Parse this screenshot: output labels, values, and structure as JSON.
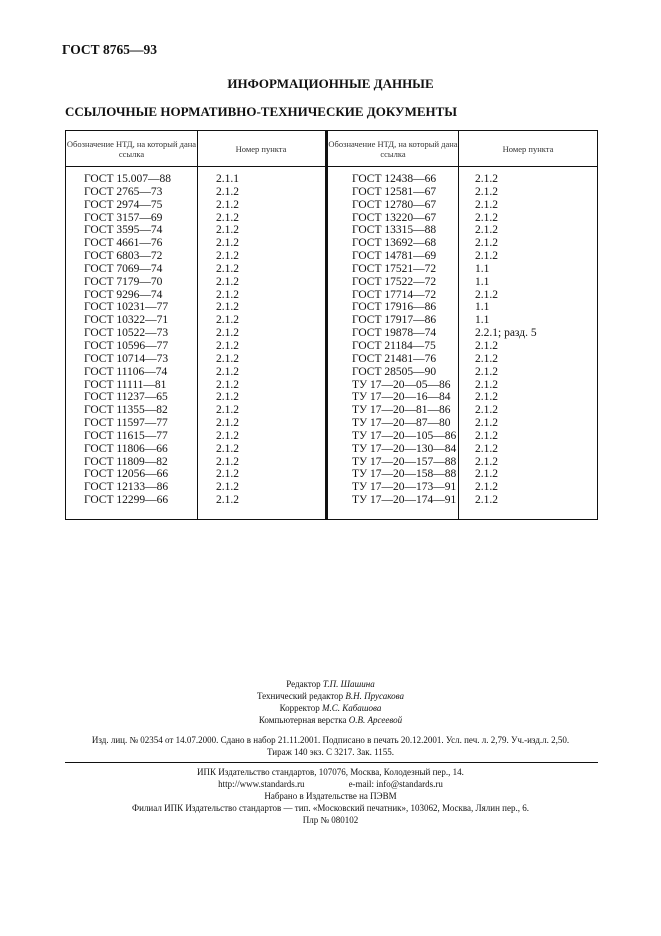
{
  "header": {
    "doc_code": "ГОСТ 8765—93"
  },
  "section_title": "ИНФОРМАЦИОННЫЕ ДАННЫЕ",
  "subsection_title": "ССЫЛОЧНЫЕ НОРМАТИВНО-ТЕХНИЧЕСКИЕ ДОКУМЕНТЫ",
  "table": {
    "headers": [
      "Обозначение НТД, на который дана ссылка",
      "Номер пункта",
      "Обозначение НТД, на который дана ссылка",
      "Номер пункта"
    ],
    "left_rows": [
      [
        "ГОСТ 15.007—88",
        "2.1.1"
      ],
      [
        "ГОСТ 2765—73",
        "2.1.2"
      ],
      [
        "ГОСТ 2974—75",
        "2.1.2"
      ],
      [
        "ГОСТ 3157—69",
        "2.1.2"
      ],
      [
        "ГОСТ 3595—74",
        "2.1.2"
      ],
      [
        "ГОСТ 4661—76",
        "2.1.2"
      ],
      [
        "ГОСТ 6803—72",
        "2.1.2"
      ],
      [
        "ГОСТ 7069—74",
        "2.1.2"
      ],
      [
        "ГОСТ 7179—70",
        "2.1.2"
      ],
      [
        "ГОСТ 9296—74",
        "2.1.2"
      ],
      [
        "ГОСТ 10231—77",
        "2.1.2"
      ],
      [
        "ГОСТ 10322—71",
        "2.1.2"
      ],
      [
        "ГОСТ 10522—73",
        "2.1.2"
      ],
      [
        "ГОСТ 10596—77",
        "2.1.2"
      ],
      [
        "ГОСТ 10714—73",
        "2.1.2"
      ],
      [
        "ГОСТ 11106—74",
        "2.1.2"
      ],
      [
        "ГОСТ 11111—81",
        "2.1.2"
      ],
      [
        "ГОСТ 11237—65",
        "2.1.2"
      ],
      [
        "ГОСТ 11355—82",
        "2.1.2"
      ],
      [
        "ГОСТ 11597—77",
        "2.1.2"
      ],
      [
        "ГОСТ 11615—77",
        "2.1.2"
      ],
      [
        "ГОСТ 11806—66",
        "2.1.2"
      ],
      [
        "ГОСТ 11809—82",
        "2.1.2"
      ],
      [
        "ГОСТ 12056—66",
        "2.1.2"
      ],
      [
        "ГОСТ 12133—86",
        "2.1.2"
      ],
      [
        "ГОСТ 12299—66",
        "2.1.2"
      ]
    ],
    "right_rows": [
      [
        "ГОСТ 12438—66",
        "2.1.2"
      ],
      [
        "ГОСТ 12581—67",
        "2.1.2"
      ],
      [
        "ГОСТ 12780—67",
        "2.1.2"
      ],
      [
        "ГОСТ 13220—67",
        "2.1.2"
      ],
      [
        "ГОСТ 13315—88",
        "2.1.2"
      ],
      [
        "ГОСТ 13692—68",
        "2.1.2"
      ],
      [
        "ГОСТ 14781—69",
        "2.1.2"
      ],
      [
        "ГОСТ 17521—72",
        "1.1"
      ],
      [
        "ГОСТ 17522—72",
        "1.1"
      ],
      [
        "ГОСТ 17714—72",
        "2.1.2"
      ],
      [
        "ГОСТ 17916—86",
        "1.1"
      ],
      [
        "ГОСТ 17917—86",
        "1.1"
      ],
      [
        "ГОСТ 19878—74",
        "2.2.1; разд. 5"
      ],
      [
        "ГОСТ 21184—75",
        "2.1.2"
      ],
      [
        "ГОСТ 21481—76",
        "2.1.2"
      ],
      [
        "ГОСТ 28505—90",
        "2.1.2"
      ],
      [
        "ТУ 17—20—05—86",
        "2.1.2"
      ],
      [
        "ТУ 17—20—16—84",
        "2.1.2"
      ],
      [
        "ТУ 17—20—81—86",
        "2.1.2"
      ],
      [
        "ТУ 17—20—87—80",
        "2.1.2"
      ],
      [
        "ТУ 17—20—105—86",
        "2.1.2"
      ],
      [
        "ТУ 17—20—130—84",
        "2.1.2"
      ],
      [
        "ТУ 17—20—157—88",
        "2.1.2"
      ],
      [
        "ТУ 17—20—158—88",
        "2.1.2"
      ],
      [
        "ТУ 17—20—173—91",
        "2.1.2"
      ],
      [
        "ТУ 17—20—174—91",
        "2.1.2"
      ]
    ]
  },
  "imprint": {
    "editor_label": "Редактор",
    "editor": "Т.П. Шашина",
    "tech_editor_label": "Технический редактор",
    "tech_editor": "В.Н. Прусакова",
    "corrector_label": "Корректор",
    "corrector": "М.С. Кабашова",
    "layout_label": "Компьютерная верстка",
    "layout": "О.В. Арсеевой",
    "publication_line1": "Изд. лиц. № 02354 от 14.07.2000. Сдано в набор 21.11.2001. Подписано в печать 20.12.2001. Усл. печ. л. 2,79. Уч.-изд.л. 2,50.",
    "publication_line2": "Тираж  140  экз. С 3217. Зак. 1155.",
    "publisher": "ИПК Издательство стандартов, 107076, Москва, Колодезный пер., 14.",
    "website": "http://www.standards.ru",
    "email": "e-mail: info@standards.ru",
    "typeset": "Набрано в Издательстве на ПЭВМ",
    "branch": "Филиал ИПК Издательство стандартов — тип. «Московский печатник», 103062, Москва, Лялин пер., 6.",
    "plr": "Плр № 080102"
  }
}
